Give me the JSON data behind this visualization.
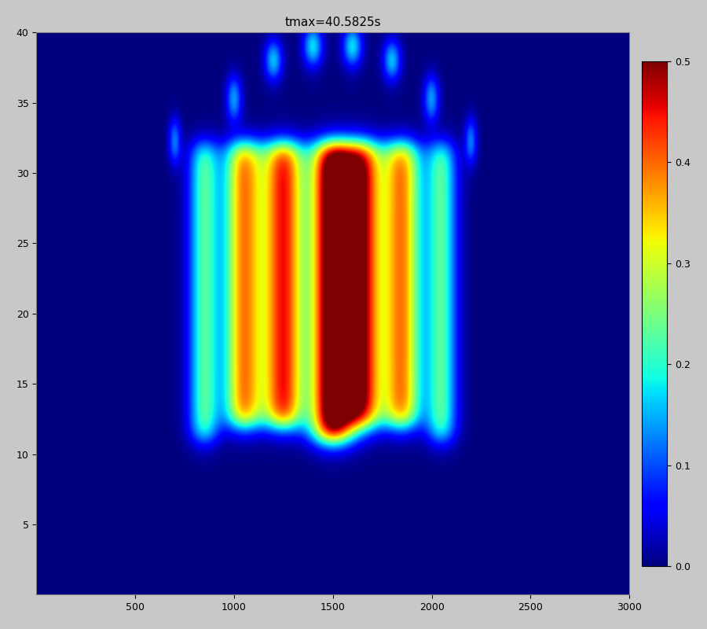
{
  "title": "tmax=40.5825s",
  "xlim": [
    0,
    3000
  ],
  "ylim": [
    0,
    40
  ],
  "xticks": [
    500,
    1000,
    1500,
    2000,
    2500,
    3000
  ],
  "yticks": [
    5,
    10,
    15,
    20,
    25,
    30,
    35,
    40
  ],
  "cmap": "jet",
  "clim": [
    0,
    0.5
  ],
  "cticks": [
    0,
    0.1,
    0.2,
    0.3,
    0.4,
    0.5
  ],
  "nx": 600,
  "ny": 400,
  "background_color": "#c8c8c8",
  "title_fontsize": 11,
  "tick_fontsize": 9,
  "figsize": [
    9.0,
    8.0
  ],
  "dpi": 100,
  "stripes": [
    {
      "x_center": 700,
      "x_sigma": 22,
      "y_bot": 31,
      "y_top": 33.5,
      "amplitude": 0.14
    },
    {
      "x_center": 850,
      "x_sigma": 55,
      "y_bot": 11,
      "y_top": 32,
      "amplitude": 0.22
    },
    {
      "x_center": 1000,
      "x_sigma": 28,
      "y_bot": 34,
      "y_top": 36.5,
      "amplitude": 0.16
    },
    {
      "x_center": 1050,
      "x_sigma": 70,
      "y_bot": 12,
      "y_top": 32,
      "amplitude": 0.38
    },
    {
      "x_center": 1200,
      "x_sigma": 32,
      "y_bot": 37,
      "y_top": 39,
      "amplitude": 0.2
    },
    {
      "x_center": 1250,
      "x_sigma": 75,
      "y_bot": 12,
      "y_top": 32,
      "amplitude": 0.44
    },
    {
      "x_center": 1400,
      "x_sigma": 35,
      "y_bot": 38,
      "y_top": 40,
      "amplitude": 0.22
    },
    {
      "x_center": 1500,
      "x_sigma": 80,
      "y_bot": 11,
      "y_top": 32,
      "amplitude": 0.56
    },
    {
      "x_center": 1600,
      "x_sigma": 35,
      "y_bot": 38,
      "y_top": 40,
      "amplitude": 0.22
    },
    {
      "x_center": 1650,
      "x_sigma": 75,
      "y_bot": 12,
      "y_top": 32,
      "amplitude": 0.44
    },
    {
      "x_center": 1800,
      "x_sigma": 32,
      "y_bot": 37,
      "y_top": 39,
      "amplitude": 0.2
    },
    {
      "x_center": 1850,
      "x_sigma": 70,
      "y_bot": 12,
      "y_top": 32,
      "amplitude": 0.38
    },
    {
      "x_center": 2000,
      "x_sigma": 28,
      "y_bot": 34,
      "y_top": 36.5,
      "amplitude": 0.16
    },
    {
      "x_center": 2050,
      "x_sigma": 55,
      "y_bot": 11,
      "y_top": 32,
      "amplitude": 0.22
    },
    {
      "x_center": 2200,
      "x_sigma": 22,
      "y_bot": 31,
      "y_top": 33.5,
      "amplitude": 0.14
    }
  ]
}
